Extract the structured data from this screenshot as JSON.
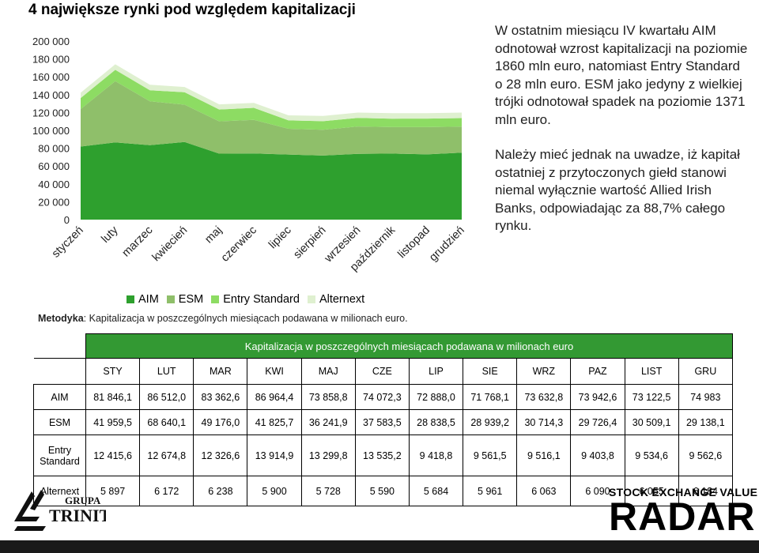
{
  "title": "4 największe rynki pod względem kapitalizacji",
  "legend": {
    "aim": "AIM",
    "esm": "ESM",
    "entry": "Entry Standard",
    "alternext": "Alternext"
  },
  "methodology": {
    "label": "Metodyka",
    "text": ": Kapitalizacja w poszczególnych miesiącach podawana w milionach euro."
  },
  "side_text": {
    "p1": "W ostatnim miesiącu IV kwartału AIM odnotował wzrost kapitalizacji na poziomie 1860 mln euro, natomiast Entry Standard o 28 mln euro. ESM jako jedyny z wielkiej trójki odnotował spadek na poziomie 1371 mln euro.",
    "p2": "Należy mieć jednak na uwadze, iż kapitał ostatniej z przytoczonych giełd stanowi niemal wyłącznie wartość Allied Irish Banks, odpowiadając za 88,7% całego rynku."
  },
  "colors": {
    "aim": "#2ea02e",
    "esm": "#8fbf6a",
    "entry": "#8ddc63",
    "alternext": "#dff0d0",
    "table_header": "#339933"
  },
  "chart_data": {
    "type": "area",
    "stacked": true,
    "title": "4 największe rynki pod względem kapitalizacji",
    "categories": [
      "styczeń",
      "luty",
      "marzec",
      "kwiecień",
      "maj",
      "czerwiec",
      "lipiec",
      "sierpień",
      "wrzesień",
      "październik",
      "listopad",
      "grudzień"
    ],
    "y_ticks": [
      "200 000",
      "180 000",
      "160 000",
      "140 000",
      "120 000",
      "100 000",
      "80 000",
      "60 000",
      "40 000",
      "20 000",
      "0"
    ],
    "ylim": [
      0,
      200000
    ],
    "series": [
      {
        "name": "AIM",
        "values": [
          81846.1,
          86512.0,
          83362.6,
          86964.4,
          73858.8,
          74072.3,
          72888.0,
          71768.1,
          73632.8,
          73942.6,
          73122.5,
          74983
        ]
      },
      {
        "name": "ESM",
        "values": [
          41959.5,
          68640.1,
          49176.0,
          41825.7,
          36241.9,
          37583.5,
          28838.5,
          28939.2,
          30714.3,
          29726.4,
          30509.1,
          29138.1
        ]
      },
      {
        "name": "Entry Standard",
        "values": [
          12415.6,
          12674.8,
          12326.6,
          13914.9,
          13299.8,
          13535.2,
          9418.8,
          9561.5,
          9516.1,
          9403.8,
          9534.6,
          9562.6
        ]
      },
      {
        "name": "Alternext",
        "values": [
          5897,
          6172,
          6238,
          5900,
          5728,
          5590,
          5684,
          5961,
          6063,
          6090,
          6055,
          6184
        ]
      }
    ],
    "legend_position": "bottom",
    "grid": false
  },
  "table": {
    "caption": "Kapitalizacja w poszczególnych miesiącach podawana w milionach euro",
    "columns": [
      "STY",
      "LUT",
      "MAR",
      "KWI",
      "MAJ",
      "CZE",
      "LIP",
      "SIE",
      "WRZ",
      "PAZ",
      "LIST",
      "GRU"
    ],
    "rows": [
      {
        "label": "AIM",
        "values": [
          "81 846,1",
          "86 512,0",
          "83 362,6",
          "86 964,4",
          "73 858,8",
          "74 072,3",
          "72 888,0",
          "71 768,1",
          "73 632,8",
          "73 942,6",
          "73 122,5",
          "74 983"
        ]
      },
      {
        "label": "ESM",
        "values": [
          "41 959,5",
          "68 640,1",
          "49 176,0",
          "41 825,7",
          "36 241,9",
          "37 583,5",
          "28 838,5",
          "28 939,2",
          "30 714,3",
          "29 726,4",
          "30 509,1",
          "29 138,1"
        ]
      },
      {
        "label": "Entry Standard",
        "values": [
          "12 415,6",
          "12 674,8",
          "12 326,6",
          "13 914,9",
          "13 299,8",
          "13 535,2",
          "9 418,8",
          "9 561,5",
          "9 516,1",
          "9 403,8",
          "9 534,6",
          "9 562,6"
        ]
      },
      {
        "label": "Alternext",
        "values": [
          "5 897",
          "6 172",
          "6 238",
          "5 900",
          "5 728",
          "5 590",
          "5 684",
          "5 961",
          "6 063",
          "6 090",
          "6 055",
          "6 184"
        ]
      }
    ]
  },
  "logos": {
    "left_line1": "GRUPA",
    "left_line2": "TRINITY",
    "right_line1": "STOCK EXCHANGE VALUE",
    "right_line2": "RADAR"
  }
}
